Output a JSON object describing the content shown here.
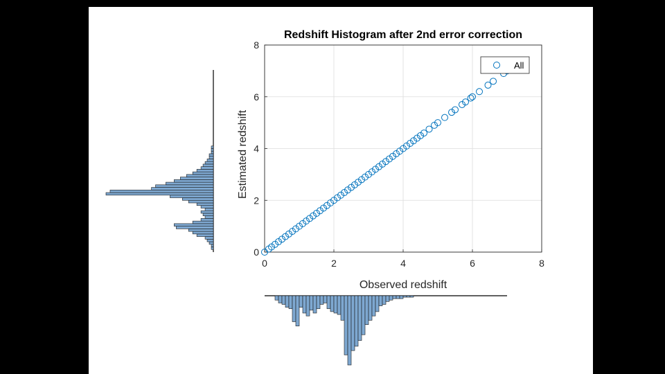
{
  "chart_data": {
    "type": "scatter",
    "title": "Redshift Histogram after 2nd error correction",
    "xlabel": "Observed redshift",
    "ylabel": "Estimated redshift",
    "xlim": [
      0,
      8
    ],
    "ylim": [
      0,
      8
    ],
    "xticks": [
      "0",
      "2",
      "4",
      "6",
      "8"
    ],
    "yticks": [
      "0",
      "2",
      "4",
      "6",
      "8"
    ],
    "grid": true,
    "legend_position": "top-right",
    "series": [
      {
        "name": "All",
        "marker": "open-circle",
        "color": "#0072BD",
        "points": [
          [
            0.0,
            0.0
          ],
          [
            0.12,
            0.12
          ],
          [
            0.2,
            0.2
          ],
          [
            0.3,
            0.3
          ],
          [
            0.4,
            0.4
          ],
          [
            0.5,
            0.5
          ],
          [
            0.6,
            0.6
          ],
          [
            0.7,
            0.7
          ],
          [
            0.8,
            0.8
          ],
          [
            0.9,
            0.9
          ],
          [
            1.0,
            1.0
          ],
          [
            1.1,
            1.1
          ],
          [
            1.2,
            1.2
          ],
          [
            1.3,
            1.3
          ],
          [
            1.4,
            1.4
          ],
          [
            1.5,
            1.5
          ],
          [
            1.6,
            1.6
          ],
          [
            1.7,
            1.7
          ],
          [
            1.8,
            1.8
          ],
          [
            1.9,
            1.9
          ],
          [
            2.0,
            2.0
          ],
          [
            2.1,
            2.1
          ],
          [
            2.2,
            2.2
          ],
          [
            2.3,
            2.3
          ],
          [
            2.4,
            2.4
          ],
          [
            2.5,
            2.5
          ],
          [
            2.6,
            2.6
          ],
          [
            2.7,
            2.7
          ],
          [
            2.8,
            2.8
          ],
          [
            2.9,
            2.9
          ],
          [
            3.0,
            3.0
          ],
          [
            3.1,
            3.1
          ],
          [
            3.2,
            3.2
          ],
          [
            3.3,
            3.3
          ],
          [
            3.4,
            3.4
          ],
          [
            3.5,
            3.5
          ],
          [
            3.6,
            3.6
          ],
          [
            3.7,
            3.7
          ],
          [
            3.8,
            3.8
          ],
          [
            3.9,
            3.9
          ],
          [
            4.0,
            4.0
          ],
          [
            4.1,
            4.1
          ],
          [
            4.2,
            4.2
          ],
          [
            4.3,
            4.3
          ],
          [
            4.4,
            4.4
          ],
          [
            4.5,
            4.5
          ],
          [
            4.6,
            4.6
          ],
          [
            4.75,
            4.75
          ],
          [
            4.9,
            4.9
          ],
          [
            5.0,
            5.0
          ],
          [
            5.2,
            5.2
          ],
          [
            5.4,
            5.4
          ],
          [
            5.5,
            5.5
          ],
          [
            5.7,
            5.7
          ],
          [
            5.8,
            5.8
          ],
          [
            5.95,
            5.95
          ],
          [
            6.0,
            6.0
          ],
          [
            6.2,
            6.2
          ],
          [
            6.45,
            6.45
          ],
          [
            6.6,
            6.6
          ],
          [
            6.9,
            6.9
          ],
          [
            7.0,
            7.0
          ]
        ]
      }
    ],
    "marginal_histograms": {
      "bottom_observed": {
        "bin_edges_start": 0.3,
        "bin_width": 0.1,
        "counts": [
          3,
          5,
          6,
          8,
          9,
          18,
          21,
          8,
          12,
          14,
          10,
          12,
          9,
          6,
          5,
          9,
          11,
          12,
          13,
          17,
          41,
          48,
          38,
          35,
          31,
          27,
          20,
          17,
          14,
          11,
          7,
          6,
          4,
          3,
          2,
          2,
          2,
          1,
          1,
          1
        ]
      },
      "left_estimated": {
        "bin_edges_start": 0.1,
        "bin_width": 0.1,
        "counts": [
          1,
          1,
          2,
          3,
          4,
          8,
          10,
          12,
          18,
          19,
          10,
          6,
          4,
          5,
          6,
          4,
          6,
          8,
          12,
          15,
          21,
          52,
          50,
          30,
          28,
          23,
          19,
          16,
          13,
          10,
          8,
          6,
          5,
          4,
          3,
          2,
          2,
          1,
          1,
          1
        ]
      }
    }
  }
}
